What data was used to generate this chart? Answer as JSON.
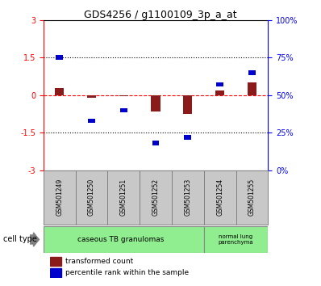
{
  "title": "GDS4256 / g1100109_3p_a_at",
  "samples": [
    "GSM501249",
    "GSM501250",
    "GSM501251",
    "GSM501252",
    "GSM501253",
    "GSM501254",
    "GSM501255"
  ],
  "transformed_count": [
    0.28,
    -0.12,
    -0.05,
    -0.65,
    -0.75,
    0.18,
    0.52
  ],
  "percentile_rank": [
    75,
    33,
    40,
    18,
    22,
    57,
    65
  ],
  "ylim_left": [
    -3,
    3
  ],
  "ylim_right": [
    0,
    100
  ],
  "yticks_left": [
    -3,
    -1.5,
    0,
    1.5,
    3
  ],
  "yticks_right": [
    0,
    25,
    50,
    75,
    100
  ],
  "ytick_labels_left": [
    "-3",
    "-1.5",
    "0",
    "1.5",
    "3"
  ],
  "ytick_labels_right": [
    "0%",
    "25%",
    "50%",
    "75%",
    "100%"
  ],
  "hline_dotted": [
    -1.5,
    1.5
  ],
  "hline_red_dashed": 0,
  "red_color": "#8B1A1A",
  "blue_color": "#0000CD",
  "bar_width": 0.28,
  "legend_red": "transformed count",
  "legend_blue": "percentile rank within the sample",
  "cell_type_label": "cell type",
  "green_color": "#90EE90",
  "gray_color": "#C8C8C8"
}
